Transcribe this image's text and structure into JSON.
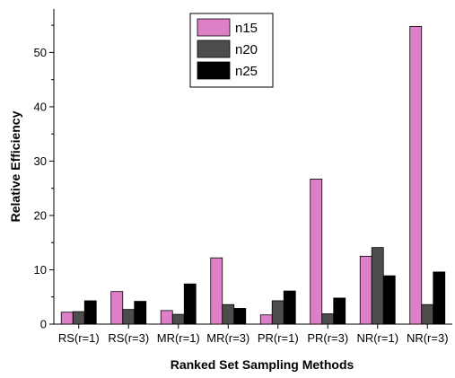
{
  "chart_data": {
    "type": "bar",
    "title": "",
    "xlabel": "Ranked Set Sampling Methods",
    "ylabel": "Relative Efficiency",
    "categories": [
      "RS(r=1)",
      "RS(r=3)",
      "MR(r=1)",
      "MR(r=3)",
      "PR(r=1)",
      "PR(r=3)",
      "NR(r=1)",
      "NR(r=3)"
    ],
    "series": [
      {
        "name": "n15",
        "color": "#dd80c8",
        "values": [
          2.2,
          6.0,
          2.5,
          12.2,
          1.7,
          26.7,
          12.5,
          54.8
        ]
      },
      {
        "name": "n20",
        "color": "#4d4d4d",
        "values": [
          2.3,
          2.7,
          1.8,
          3.6,
          4.3,
          1.9,
          14.1,
          3.6
        ]
      },
      {
        "name": "n25",
        "color": "#000000",
        "values": [
          4.3,
          4.2,
          7.4,
          2.9,
          6.1,
          4.8,
          8.9,
          9.6
        ]
      }
    ],
    "ylim": [
      0,
      58
    ],
    "yticks": [
      0,
      10,
      20,
      30,
      40,
      50
    ],
    "grid": false,
    "legend_position": "top-center"
  }
}
